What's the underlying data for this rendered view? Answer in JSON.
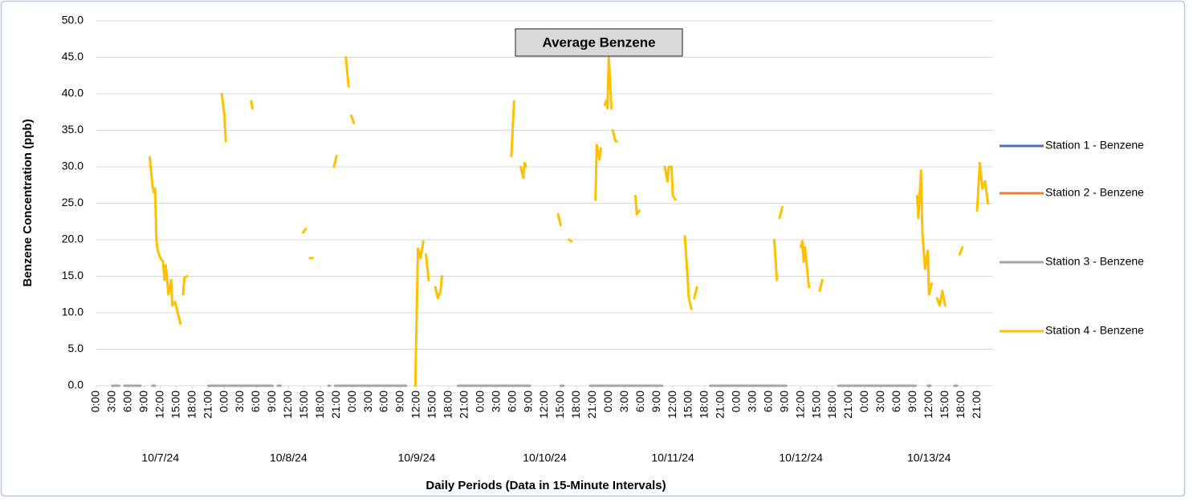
{
  "chart_data": {
    "type": "line",
    "title": "Average Benzene",
    "y_label": "Benzene Concentration (ppb)",
    "x_label": "Daily Periods (Data in 15-Minute Intervals)",
    "days": [
      "10/7/24",
      "10/8/24",
      "10/9/24",
      "10/10/24",
      "10/11/24",
      "10/12/24",
      "10/13/24"
    ],
    "xlim": [
      0,
      168
    ],
    "xticks": [
      {
        "value": 0,
        "label": "0:00"
      },
      {
        "value": 3,
        "label": "3:00"
      },
      {
        "value": 6,
        "label": "6:00"
      },
      {
        "value": 9,
        "label": "9:00"
      },
      {
        "value": 12,
        "label": "12:00"
      },
      {
        "value": 15,
        "label": "15:00"
      },
      {
        "value": 18,
        "label": "18:00"
      },
      {
        "value": 21,
        "label": "21:00"
      },
      {
        "value": 24,
        "label": "0:00"
      },
      {
        "value": 27,
        "label": "3:00"
      },
      {
        "value": 30,
        "label": "6:00"
      },
      {
        "value": 33,
        "label": "9:00"
      },
      {
        "value": 36,
        "label": "12:00"
      },
      {
        "value": 39,
        "label": "15:00"
      },
      {
        "value": 42,
        "label": "18:00"
      },
      {
        "value": 45,
        "label": "21:00"
      },
      {
        "value": 48,
        "label": "0:00"
      },
      {
        "value": 51,
        "label": "3:00"
      },
      {
        "value": 54,
        "label": "6:00"
      },
      {
        "value": 57,
        "label": "9:00"
      },
      {
        "value": 60,
        "label": "12:00"
      },
      {
        "value": 63,
        "label": "15:00"
      },
      {
        "value": 66,
        "label": "18:00"
      },
      {
        "value": 69,
        "label": "21:00"
      },
      {
        "value": 72,
        "label": "0:00"
      },
      {
        "value": 75,
        "label": "3:00"
      },
      {
        "value": 78,
        "label": "6:00"
      },
      {
        "value": 81,
        "label": "9:00"
      },
      {
        "value": 84,
        "label": "12:00"
      },
      {
        "value": 87,
        "label": "15:00"
      },
      {
        "value": 90,
        "label": "18:00"
      },
      {
        "value": 93,
        "label": "21:00"
      },
      {
        "value": 96,
        "label": "0:00"
      },
      {
        "value": 99,
        "label": "3:00"
      },
      {
        "value": 102,
        "label": "6:00"
      },
      {
        "value": 105,
        "label": "9:00"
      },
      {
        "value": 108,
        "label": "12:00"
      },
      {
        "value": 111,
        "label": "15:00"
      },
      {
        "value": 114,
        "label": "18:00"
      },
      {
        "value": 117,
        "label": "21:00"
      },
      {
        "value": 120,
        "label": "0:00"
      },
      {
        "value": 123,
        "label": "3:00"
      },
      {
        "value": 126,
        "label": "6:00"
      },
      {
        "value": 129,
        "label": "9:00"
      },
      {
        "value": 132,
        "label": "12:00"
      },
      {
        "value": 135,
        "label": "15:00"
      },
      {
        "value": 138,
        "label": "18:00"
      },
      {
        "value": 141,
        "label": "21:00"
      },
      {
        "value": 144,
        "label": "0:00"
      },
      {
        "value": 147,
        "label": "3:00"
      },
      {
        "value": 150,
        "label": "6:00"
      },
      {
        "value": 153,
        "label": "9:00"
      },
      {
        "value": 156,
        "label": "12:00"
      },
      {
        "value": 159,
        "label": "15:00"
      },
      {
        "value": 162,
        "label": "18:00"
      },
      {
        "value": 165,
        "label": "21:00"
      }
    ],
    "ylim": [
      0,
      50
    ],
    "yticks": [
      {
        "value": 0,
        "label": "0.0"
      },
      {
        "value": 5,
        "label": "5.0"
      },
      {
        "value": 10,
        "label": "10.0"
      },
      {
        "value": 15,
        "label": "15.0"
      },
      {
        "value": 20,
        "label": "20.0"
      },
      {
        "value": 25,
        "label": "25.0"
      },
      {
        "value": 30,
        "label": "30.0"
      },
      {
        "value": 35,
        "label": "35.0"
      },
      {
        "value": 40,
        "label": "40.0"
      },
      {
        "value": 45,
        "label": "45.0"
      },
      {
        "value": 50,
        "label": "50.0"
      }
    ],
    "grid": true,
    "legend": "right",
    "series": [
      {
        "name": "Station 1 - Benzene",
        "color": "#4472c4",
        "x": [],
        "values": []
      },
      {
        "name": "Station 2 - Benzene",
        "color": "#ed7d31",
        "x": [],
        "values": []
      },
      {
        "name": "Station 3 - Benzene",
        "color": "#a5a5a5",
        "x": [
          3,
          4.25,
          4.5,
          5.25,
          8.25,
          8.5,
          10.5,
          11,
          11.25,
          21,
          33,
          33.5,
          34,
          34.5,
          35,
          43.5,
          43.75,
          44,
          44.75,
          58,
          58.5,
          67.75,
          81.25,
          81.5,
          87,
          87.5,
          88,
          92.5,
          106,
          106.5,
          115,
          129.25,
          129.5,
          139,
          153.5,
          153.75,
          155.75,
          156.25,
          156.5,
          160.75,
          161.25
        ],
        "values": [
          0,
          0,
          null,
          0,
          0,
          null,
          0,
          0,
          null,
          0,
          0,
          null,
          0,
          0,
          null,
          0,
          0,
          null,
          0,
          0,
          null,
          0,
          0,
          null,
          0,
          0,
          null,
          0,
          0,
          null,
          0,
          0,
          null,
          0,
          0,
          null,
          0,
          0,
          null,
          0,
          0
        ]
      },
      {
        "name": "Station 4 - Benzene",
        "color": "#ffc000",
        "x": [
          10,
          10.5,
          10.75,
          11,
          11.25,
          11.5,
          12,
          12.5,
          12.75,
          13,
          13.5,
          14,
          14.25,
          14.75,
          15.25,
          15.75,
          16,
          16.25,
          16.5,
          17,
          17.25,
          23.5,
          24,
          24.25,
          24.5,
          29,
          29.25,
          29.5,
          38.75,
          39.25,
          39.5,
          40,
          40.5,
          40.75,
          44.5,
          45,
          45.25,
          46.75,
          47.25,
          47.5,
          47.75,
          48.25,
          48.5,
          59.75,
          60.25,
          60.75,
          61.25,
          61.5,
          61.75,
          62.25,
          62.5,
          63.5,
          64,
          64.5,
          64.75,
          65,
          77.75,
          78.25,
          78.5,
          79.5,
          80,
          80.25,
          80.5,
          80.75,
          86.5,
          87,
          87.25,
          88.5,
          89,
          89.25,
          93.5,
          93.75,
          94.25,
          94.5,
          94.75,
          95.25,
          95.5,
          95.75,
          96,
          96.5,
          96.5,
          96.75,
          97.25,
          97.5,
          97.75,
          101,
          101.25,
          101.75,
          102,
          106.5,
          107,
          107.25,
          107.75,
          108,
          108.5,
          108.75,
          110.25,
          110.75,
          111,
          111.5,
          111.75,
          112,
          112.5,
          112.75,
          127,
          127.5,
          127.75,
          128,
          128.5,
          128.75,
          132,
          132.25,
          132.5,
          132.75,
          133.5,
          133.75,
          135.5,
          136,
          136.25,
          153.75,
          154,
          154.5,
          154.75,
          155.25,
          155.75,
          156,
          156.5,
          156.75,
          157.5,
          158,
          158.5,
          159,
          159.25,
          161.75,
          162.25,
          162.5,
          165,
          165.5,
          166,
          166.5,
          167
        ],
        "values": [
          31.3,
          27.5,
          26.5,
          27,
          20,
          18.5,
          17.5,
          17,
          14.5,
          16.5,
          12.5,
          14.5,
          11,
          11.5,
          10,
          8.5,
          null,
          12.5,
          14.8,
          15,
          null,
          40,
          37,
          33.5,
          null,
          39,
          38,
          null,
          21,
          21.5,
          null,
          17.5,
          17.5,
          null,
          30,
          31.5,
          null,
          45,
          41,
          null,
          37,
          36,
          null,
          0,
          18.8,
          17.5,
          19.8,
          null,
          18,
          14.5,
          null,
          13.5,
          12,
          13,
          15,
          null,
          31.5,
          39,
          null,
          30,
          28.5,
          30.5,
          30,
          null,
          23.5,
          22,
          null,
          20,
          19.8,
          null,
          25.5,
          33,
          31,
          32.5,
          null,
          38.5,
          39,
          38,
          45,
          38,
          null,
          35,
          33.5,
          33.5,
          null,
          26,
          23.5,
          24,
          null,
          30,
          28,
          30,
          30,
          26,
          25.5,
          null,
          20.5,
          15,
          12,
          10.5,
          null,
          12,
          13.5,
          null,
          20,
          14.5,
          null,
          23,
          24.5,
          null,
          19,
          19.8,
          17,
          19,
          13.5,
          null,
          13,
          14.5,
          null,
          26,
          23,
          29.5,
          21,
          16,
          18.5,
          12.5,
          14,
          null,
          12,
          11,
          13,
          11,
          null,
          18,
          19,
          null,
          24,
          30.5,
          27,
          28,
          25
        ]
      }
    ]
  }
}
